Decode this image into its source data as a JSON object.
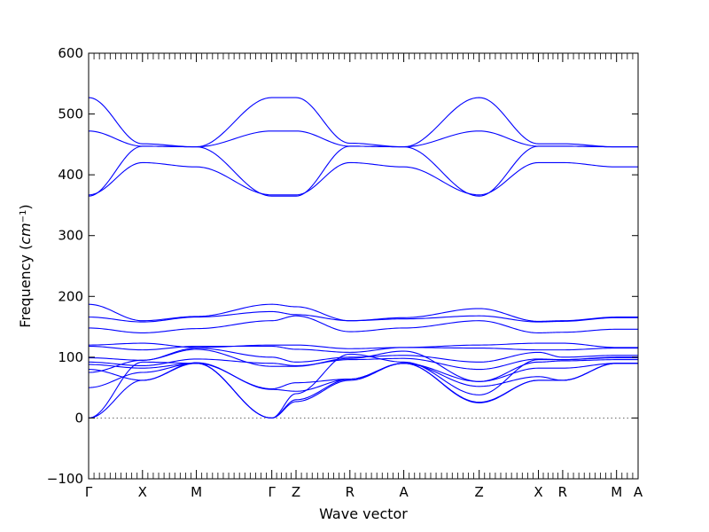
{
  "chart_data": {
    "type": "line",
    "title": "",
    "xlabel": "Wave vector",
    "ylabel_prefix": "Frequency (",
    "ylabel_unit": "cm",
    "ylabel_exp": "−1",
    "ylabel_suffix": ")",
    "ylim": [
      -100,
      600
    ],
    "yticks": [
      -100,
      0,
      100,
      200,
      300,
      400,
      500,
      600
    ],
    "xlim": [
      0,
      10.2
    ],
    "high_symmetry_points": [
      {
        "label": "Γ",
        "x": 0
      },
      {
        "label": "X",
        "x": 1
      },
      {
        "label": "M",
        "x": 2
      },
      {
        "label": "Γ",
        "x": 3.4
      },
      {
        "label": "Z",
        "x": 3.85
      },
      {
        "label": "R",
        "x": 4.85
      },
      {
        "label": "A",
        "x": 5.85
      },
      {
        "label": "Z",
        "x": 7.25
      },
      {
        "label": "X",
        "x": 8.35
      },
      {
        "label": "R",
        "x": 8.8
      },
      {
        "label": "M",
        "x": 9.8
      },
      {
        "label": "A",
        "x": 10.2
      }
    ],
    "zero_line": 0,
    "band_color": "#0000ff",
    "series": [
      {
        "values": [
          527,
          451,
          446,
          527,
          527,
          452,
          446,
          527,
          451,
          451,
          446,
          446
        ]
      },
      {
        "values": [
          472,
          447,
          446,
          472,
          472,
          447,
          446,
          472,
          447,
          447,
          446,
          446
        ]
      },
      {
        "values": [
          367,
          420,
          413,
          367,
          367,
          420,
          413,
          367,
          420,
          420,
          413,
          413
        ]
      },
      {
        "values": [
          365,
          447,
          446,
          365,
          365,
          447,
          446,
          365,
          447,
          447,
          446,
          446
        ]
      },
      {
        "values": [
          187,
          160,
          167,
          187,
          183,
          160,
          165,
          180,
          159,
          160,
          166,
          166
        ]
      },
      {
        "values": [
          166,
          158,
          166,
          175,
          170,
          160,
          163,
          168,
          158,
          159,
          165,
          165
        ]
      },
      {
        "values": [
          148,
          140,
          147,
          160,
          168,
          142,
          148,
          160,
          140,
          141,
          146,
          146
        ]
      },
      {
        "values": [
          120,
          123,
          116,
          120,
          120,
          114,
          116,
          120,
          123,
          123,
          116,
          116
        ]
      },
      {
        "values": [
          118,
          112,
          118,
          118,
          113,
          108,
          116,
          115,
          112,
          112,
          115,
          115
        ]
      },
      {
        "values": [
          99,
          95,
          115,
          100,
          92,
          100,
          103,
          92,
          108,
          100,
          103,
          103
        ]
      },
      {
        "values": [
          92,
          86,
          97,
          90,
          86,
          96,
          98,
          80,
          97,
          96,
          99,
          99
        ]
      },
      {
        "values": [
          88,
          82,
          90,
          48,
          58,
          64,
          90,
          60,
          82,
          82,
          90,
          90
        ]
      },
      {
        "values": [
          80,
          62,
          91,
          47,
          44,
          64,
          90,
          52,
          68,
          62,
          90,
          90
        ]
      },
      {
        "values": [
          75,
          95,
          113,
          85,
          85,
          98,
          110,
          60,
          92,
          94,
          96,
          96
        ]
      },
      {
        "values": [
          50,
          75,
          90,
          0,
          30,
          64,
          90,
          26,
          62,
          62,
          90,
          90
        ]
      },
      {
        "values": [
          0,
          62,
          90,
          0,
          27,
          62,
          90,
          25,
          62,
          62,
          90,
          90
        ]
      },
      {
        "values": [
          0,
          92,
          90,
          0,
          40,
          105,
          92,
          38,
          96,
          96,
          100,
          100
        ]
      }
    ]
  }
}
